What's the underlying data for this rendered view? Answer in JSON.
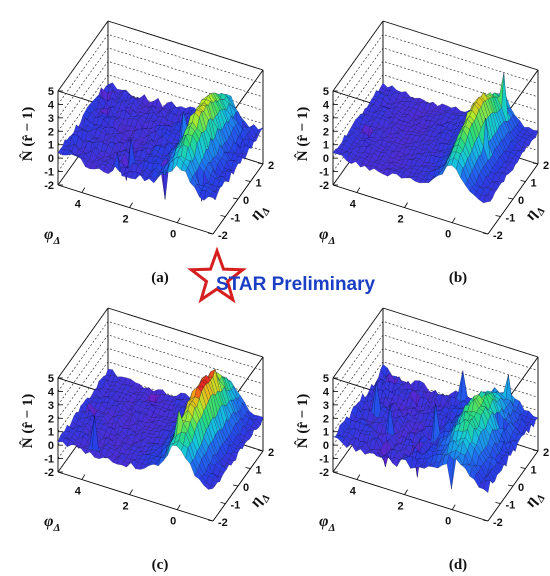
{
  "logo": {
    "text": "STAR Preliminary",
    "star_color": "#d62020",
    "text_color": "#1b3fc4"
  },
  "axis_labels": {
    "z": "N̂ (r̂ − 1)",
    "phi": "φ",
    "phi_sub": "Δ",
    "eta": "η",
    "eta_sub": "Δ"
  },
  "chart_data": [
    {
      "type": "surface",
      "panel_label": "(a)",
      "x_axis": {
        "quantity": "phi_delta",
        "range": [
          -1.5,
          5.0
        ],
        "ticks": [
          4,
          2,
          0
        ]
      },
      "y_axis": {
        "quantity": "eta_delta",
        "range": [
          -2,
          2
        ],
        "ticks": [
          2,
          1,
          0,
          -1,
          -2
        ]
      },
      "z_axis": {
        "range": [
          -2,
          5
        ],
        "ticks": [
          5,
          4,
          3,
          2,
          1,
          0,
          -1,
          -2
        ]
      },
      "surface": {
        "baseline": 0.4,
        "ridge_phi": 0.0,
        "ridge_peak": 3.7,
        "ridge_width": 0.6,
        "ridge_eta_falloff": 0.22,
        "fluctuation": 0.6,
        "spike_count": 10
      },
      "grid": true
    },
    {
      "type": "surface",
      "panel_label": "(b)",
      "x_axis": {
        "quantity": "phi_delta",
        "range": [
          -1.5,
          5.0
        ],
        "ticks": [
          4,
          2,
          0
        ]
      },
      "y_axis": {
        "quantity": "eta_delta",
        "range": [
          -2,
          2
        ],
        "ticks": [
          2,
          1,
          0,
          -1,
          -2
        ]
      },
      "z_axis": {
        "range": [
          -2,
          5
        ],
        "ticks": [
          5,
          4,
          3,
          2,
          1,
          0,
          -1,
          -2
        ]
      },
      "surface": {
        "baseline": 0.3,
        "ridge_phi": 0.0,
        "ridge_peak": 3.9,
        "ridge_width": 0.55,
        "ridge_eta_falloff": 0.2,
        "fluctuation": 0.35,
        "spike_count": 3
      },
      "grid": true
    },
    {
      "type": "surface",
      "panel_label": "(c)",
      "x_axis": {
        "quantity": "phi_delta",
        "range": [
          -1.5,
          5.0
        ],
        "ticks": [
          4,
          2,
          0
        ]
      },
      "y_axis": {
        "quantity": "eta_delta",
        "range": [
          -2,
          2
        ],
        "ticks": [
          2,
          1,
          0,
          -1,
          -2
        ]
      },
      "z_axis": {
        "range": [
          -2,
          5
        ],
        "ticks": [
          5,
          4,
          3,
          2,
          1,
          0,
          -1,
          -2
        ]
      },
      "surface": {
        "baseline": 0.3,
        "ridge_phi": 0.0,
        "ridge_peak": 4.4,
        "ridge_width": 0.65,
        "ridge_eta_falloff": 0.18,
        "fluctuation": 0.45,
        "spike_count": 5
      },
      "grid": true
    },
    {
      "type": "surface",
      "panel_label": "(d)",
      "x_axis": {
        "quantity": "phi_delta",
        "range": [
          -1.5,
          5.0
        ],
        "ticks": [
          4,
          2,
          0
        ]
      },
      "y_axis": {
        "quantity": "eta_delta",
        "range": [
          -2,
          2
        ],
        "ticks": [
          2,
          1,
          0,
          -1,
          -2
        ]
      },
      "z_axis": {
        "range": [
          -2,
          5
        ],
        "ticks": [
          5,
          4,
          3,
          2,
          1,
          0,
          -1,
          -2
        ]
      },
      "surface": {
        "baseline": 0.4,
        "ridge_phi": 0.0,
        "ridge_peak": 3.0,
        "ridge_width": 0.75,
        "ridge_eta_falloff": 0.3,
        "fluctuation": 0.7,
        "spike_count": 12
      },
      "grid": true
    }
  ]
}
